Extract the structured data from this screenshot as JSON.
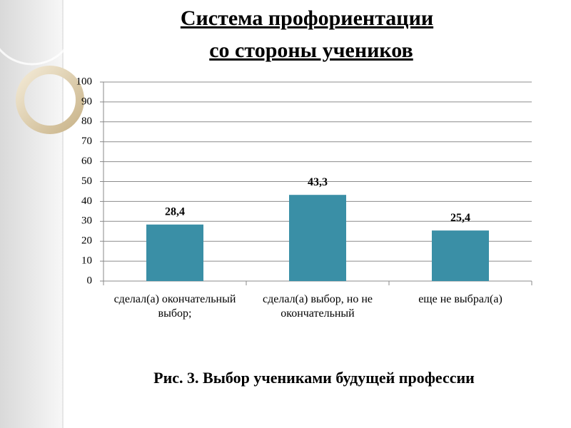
{
  "chart_data": {
    "type": "bar",
    "title": [
      "Система профориентации",
      "со стороны учеников"
    ],
    "caption": "Рис. 3. Выбор учениками будущей профессии",
    "categories": [
      "сделал(а) окончательный выбор;",
      "сделал(а) выбор, но не окончательный",
      "еще не выбрал(а)"
    ],
    "values": [
      28.4,
      43.3,
      25.4
    ],
    "value_labels": [
      "28,4",
      "43,3",
      "25,4"
    ],
    "color": "#3a8fa6",
    "ylim": [
      0,
      100
    ],
    "yticks": [
      0,
      10,
      20,
      30,
      40,
      50,
      60,
      70,
      80,
      90,
      100
    ],
    "grid": true
  }
}
